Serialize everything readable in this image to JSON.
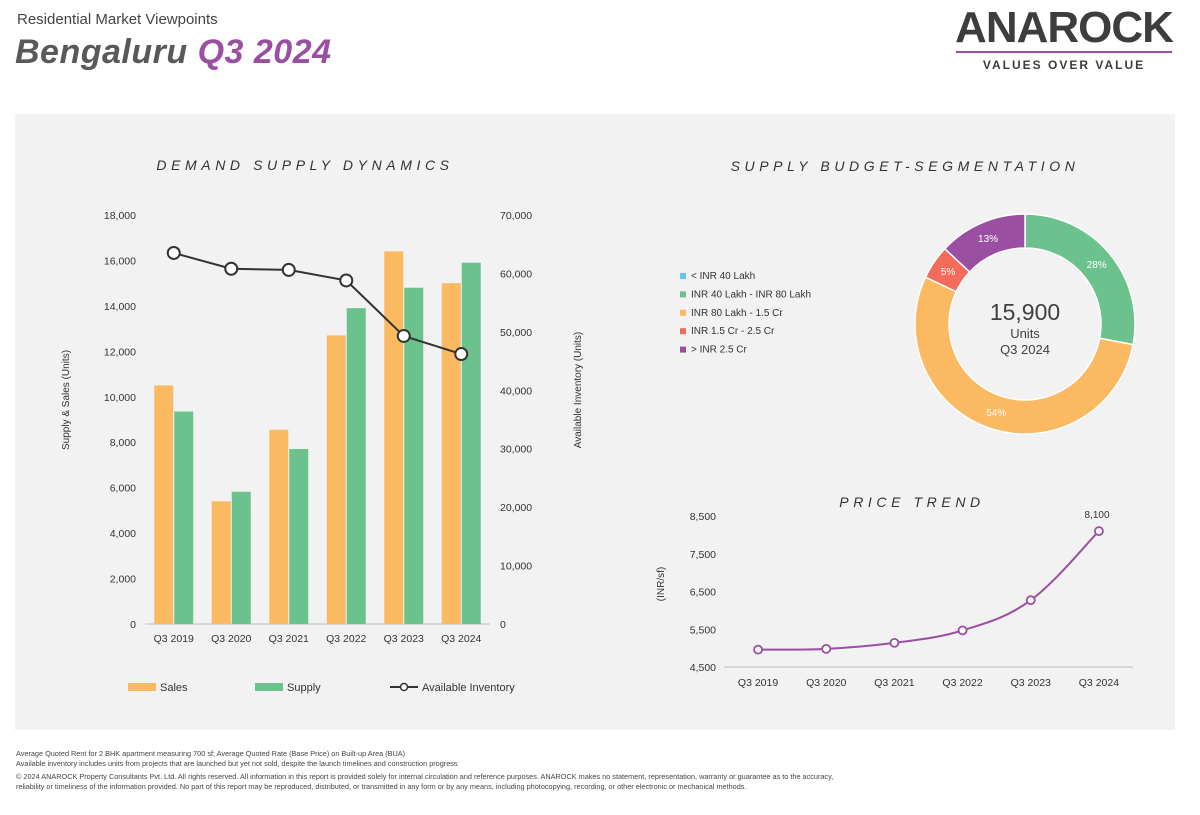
{
  "header": {
    "subtitle": "Residential Market Viewpoints",
    "city": "Bengaluru",
    "quarter": "Q3 2024"
  },
  "logo": {
    "word": "ANAROCK",
    "tagline": "VALUES OVER VALUE",
    "accent_color": "#9b4fa3"
  },
  "chart_data": [
    {
      "type": "bar",
      "title": "DEMAND SUPPLY DYNAMICS",
      "categories": [
        "Q3 2019",
        "Q3 2020",
        "Q3 2021",
        "Q3 2022",
        "Q3 2023",
        "Q3 2024"
      ],
      "series": [
        {
          "name": "Sales",
          "kind": "bar",
          "axis": "left",
          "color": "#fbb962",
          "values": [
            10500,
            5400,
            8550,
            12700,
            16400,
            15000
          ]
        },
        {
          "name": "Supply",
          "kind": "bar",
          "axis": "left",
          "color": "#6cc28c",
          "values": [
            9350,
            5820,
            7700,
            13900,
            14800,
            15900
          ]
        },
        {
          "name": "Available Inventory",
          "kind": "line",
          "axis": "right",
          "color": "#333333",
          "values": [
            63500,
            60800,
            60600,
            58800,
            49300,
            46200
          ]
        }
      ],
      "ylabel": "Supply & Sales (Units)",
      "ylim": [
        0,
        18000
      ],
      "yticks": [
        "0",
        "2,000",
        "4,000",
        "6,000",
        "8,000",
        "10,000",
        "12,000",
        "14,000",
        "16,000",
        "18,000"
      ],
      "y2label": "Available Inventory (Units)",
      "y2lim": [
        0,
        70000
      ],
      "y2ticks": [
        "0",
        "10,000",
        "20,000",
        "30,000",
        "40,000",
        "50,000",
        "60,000",
        "70,000"
      ],
      "grid": false,
      "legend": "bottom"
    },
    {
      "type": "pie",
      "title": "SUPPLY BUDGET-SEGMENTATION",
      "donut": true,
      "center_value": "15,900",
      "center_unit": "Units",
      "center_period": "Q3 2024",
      "slices": [
        {
          "label": "< INR 40 Lakh",
          "value": 0,
          "color": "#5ec8ee",
          "text": ""
        },
        {
          "label": "INR 40 Lakh - INR 80 Lakh",
          "value": 28,
          "color": "#6cc28c",
          "text": "28%"
        },
        {
          "label": "INR 80 Lakh - 1.5 Cr",
          "value": 54,
          "color": "#fbb962",
          "text": "54%"
        },
        {
          "label": "INR 1.5 Cr - 2.5 Cr",
          "value": 5,
          "color": "#f26b5b",
          "text": "5%"
        },
        {
          "label": "> INR 2.5 Cr",
          "value": 13,
          "color": "#9b4fa3",
          "text": "13%"
        }
      ],
      "legend": "left"
    },
    {
      "type": "line",
      "title": "PRICE TREND",
      "categories": [
        "Q3 2019",
        "Q3 2020",
        "Q3 2021",
        "Q3 2022",
        "Q3 2023",
        "Q3 2024"
      ],
      "series": [
        {
          "name": "",
          "color": "#9b4fa3",
          "values": [
            4960,
            4980,
            5140,
            5470,
            6270,
            8100
          ]
        }
      ],
      "ylabel": "(INR/sf)",
      "ylim": [
        4500,
        8500
      ],
      "yticks": [
        "4,500",
        "5,500",
        "6,500",
        "7,500",
        "8,500"
      ],
      "last_label": "8,100",
      "grid": false
    }
  ],
  "footer": {
    "line1": "Average Quoted Rent for 2 BHK apartment measuring 700 sf; Average Quoted Rate (Base Price) on Built-up Area (BUA)",
    "line2": "Available inventory includes units from projects that are launched but yet not sold, despite the launch timelines and construction progress",
    "line3": "© 2024 ANAROCK Property Consultants Pvt. Ltd. All rights reserved. All information in this report is provided solely for internal circulation and reference purposes. ANAROCK makes no statement, representation, warranty or guarantee as to the accuracy, reliability or timeliness of the information provided. No part of this report may be reproduced, distributed, or transmitted in any form or by any means, including photocopying, recording, or other electronic or mechanical methods."
  }
}
